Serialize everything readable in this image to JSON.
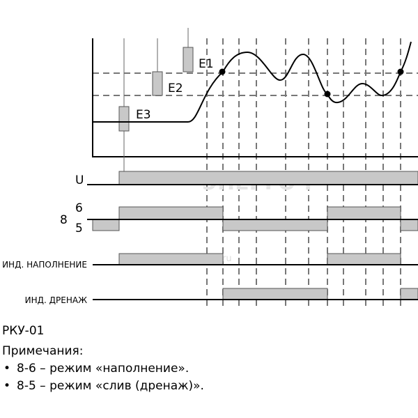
{
  "levels": [
    "E1",
    "E2",
    "E3"
  ],
  "signals": {
    "u": "U",
    "relay": {
      "common": "8",
      "high": "6",
      "low": "5"
    },
    "fill": "ИНД. НАПОЛНЕНИЕ",
    "drain": "ИНД. ДРЕНАЖ"
  },
  "watermark": {
    "brand": "ЭНЕРГО-Р",
    "site": "www.en-r.ru"
  },
  "model": "РКУ-01",
  "notes": {
    "title": "Примечания:",
    "items": [
      "8-6 – режим «наполнение».",
      "8-5 – режим «слив (дренаж)»."
    ]
  }
}
